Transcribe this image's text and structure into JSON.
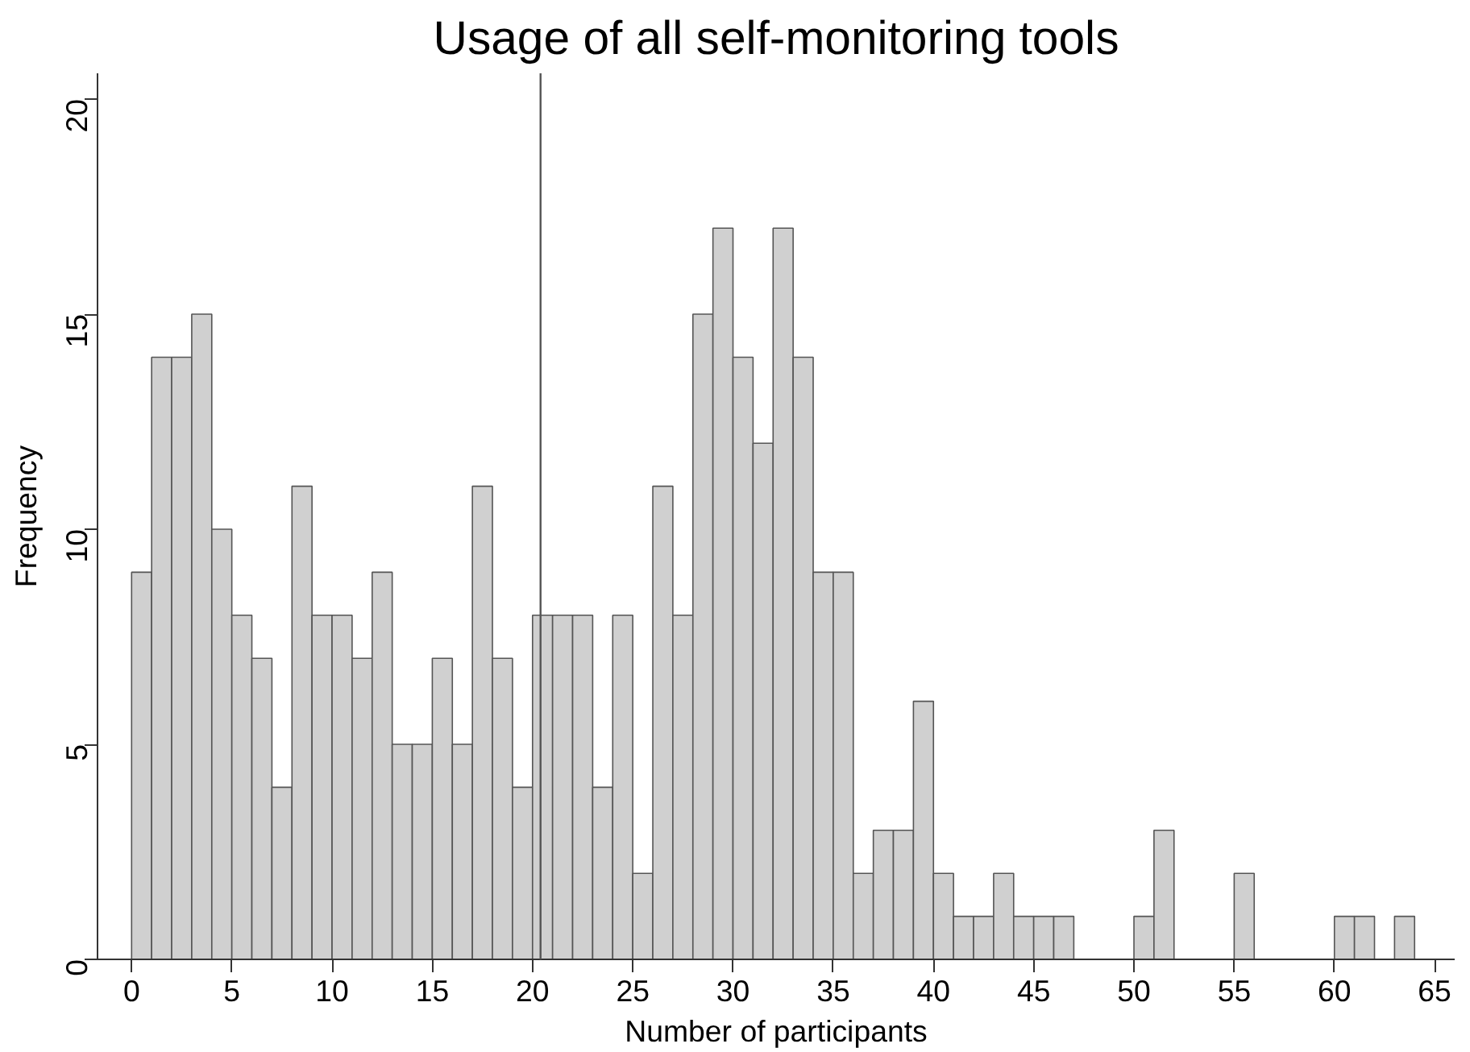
{
  "chart_data": {
    "type": "histogram",
    "title": "Usage of all self-monitoring tools",
    "xlabel": "Number of participants",
    "ylabel": "Frequency",
    "bins": [
      0,
      1,
      2,
      3,
      4,
      5,
      6,
      7,
      8,
      9,
      10,
      11,
      12,
      13,
      14,
      15,
      16,
      17,
      18,
      19,
      20,
      21,
      22,
      23,
      24,
      25,
      26,
      27,
      28,
      29,
      30,
      31,
      32,
      33,
      34,
      35,
      36,
      37,
      38,
      39,
      40,
      41,
      42,
      43,
      44,
      45,
      46,
      47,
      48,
      49,
      50,
      51,
      52,
      53,
      54,
      55,
      56,
      57,
      58,
      59,
      60,
      61,
      62,
      63,
      64
    ],
    "values": [
      9,
      14,
      14,
      15,
      10,
      8,
      7,
      4,
      11,
      8,
      8,
      7,
      9,
      5,
      5,
      7,
      5,
      11,
      7,
      4,
      8,
      8,
      8,
      4,
      8,
      2,
      11,
      8,
      15,
      17,
      14,
      12,
      17,
      14,
      9,
      9,
      2,
      3,
      3,
      6,
      2,
      1,
      1,
      2,
      1,
      1,
      1,
      0,
      0,
      0,
      1,
      3,
      0,
      0,
      0,
      2,
      0,
      0,
      0,
      0,
      1,
      1,
      0,
      1
    ],
    "color": "#d0d0d0",
    "xlim": [
      -1.7,
      66
    ],
    "ylim": [
      0,
      20.6
    ],
    "xticks": [
      0,
      5,
      10,
      15,
      20,
      25,
      30,
      35,
      40,
      45,
      50,
      55,
      60,
      65
    ],
    "yticks": [
      0,
      5,
      10,
      15,
      20
    ],
    "ref_lines": [
      {
        "axis": "x",
        "value": 20.4,
        "color": "#555555"
      }
    ],
    "grid": false
  }
}
